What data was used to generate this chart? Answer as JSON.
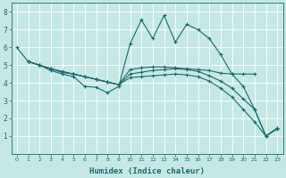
{
  "xlabel": "Humidex (Indice chaleur)",
  "background_color": "#c5e8e5",
  "grid_color": "#ffffff",
  "line_color": "#1a6b6b",
  "xlim": [
    -0.5,
    23.5
  ],
  "ylim": [
    0,
    8.5
  ],
  "xticks": [
    0,
    1,
    2,
    3,
    4,
    5,
    6,
    7,
    8,
    9,
    10,
    11,
    12,
    13,
    14,
    15,
    16,
    17,
    18,
    19,
    20,
    21,
    22,
    23
  ],
  "yticks": [
    1,
    2,
    3,
    4,
    5,
    6,
    7,
    8
  ],
  "lines": [
    {
      "x": [
        0,
        1,
        2,
        3,
        4,
        5,
        6,
        7,
        8,
        9,
        10,
        11,
        12,
        13,
        14,
        15,
        16,
        17,
        18,
        19,
        20,
        21,
        22,
        23
      ],
      "y": [
        6.0,
        5.2,
        5.0,
        4.7,
        4.5,
        4.35,
        3.8,
        3.75,
        3.45,
        3.8,
        6.2,
        7.55,
        6.5,
        7.8,
        6.3,
        7.3,
        7.0,
        6.5,
        5.6,
        4.5,
        3.8,
        2.5,
        1.0,
        1.4
      ]
    },
    {
      "x": [
        1,
        2,
        3,
        4,
        5,
        6,
        7,
        8,
        9,
        10,
        11,
        12,
        13,
        14,
        15,
        16,
        17,
        18,
        19,
        20,
        21
      ],
      "y": [
        5.2,
        5.0,
        4.8,
        4.6,
        4.5,
        4.35,
        4.2,
        4.05,
        3.9,
        4.75,
        4.85,
        4.9,
        4.9,
        4.85,
        4.8,
        4.75,
        4.7,
        4.55,
        4.5,
        4.5,
        4.5
      ]
    },
    {
      "x": [
        1,
        2,
        3,
        4,
        5,
        6,
        7,
        8,
        9,
        10,
        11,
        12,
        13,
        14,
        15,
        16,
        17,
        18,
        19,
        20,
        21,
        22,
        23
      ],
      "y": [
        5.2,
        5.0,
        4.8,
        4.6,
        4.5,
        4.35,
        4.2,
        4.05,
        3.9,
        4.5,
        4.6,
        4.7,
        4.75,
        4.8,
        4.75,
        4.65,
        4.4,
        4.1,
        3.7,
        3.1,
        2.5,
        1.0,
        1.45
      ]
    },
    {
      "x": [
        1,
        2,
        3,
        4,
        5,
        6,
        7,
        8,
        9,
        10,
        11,
        12,
        13,
        14,
        15,
        16,
        17,
        18,
        19,
        20,
        21,
        22,
        23
      ],
      "y": [
        5.2,
        5.0,
        4.8,
        4.65,
        4.5,
        4.35,
        4.2,
        4.05,
        3.9,
        4.3,
        4.35,
        4.4,
        4.45,
        4.5,
        4.45,
        4.35,
        4.1,
        3.7,
        3.2,
        2.5,
        1.8,
        1.0,
        1.45
      ]
    }
  ]
}
